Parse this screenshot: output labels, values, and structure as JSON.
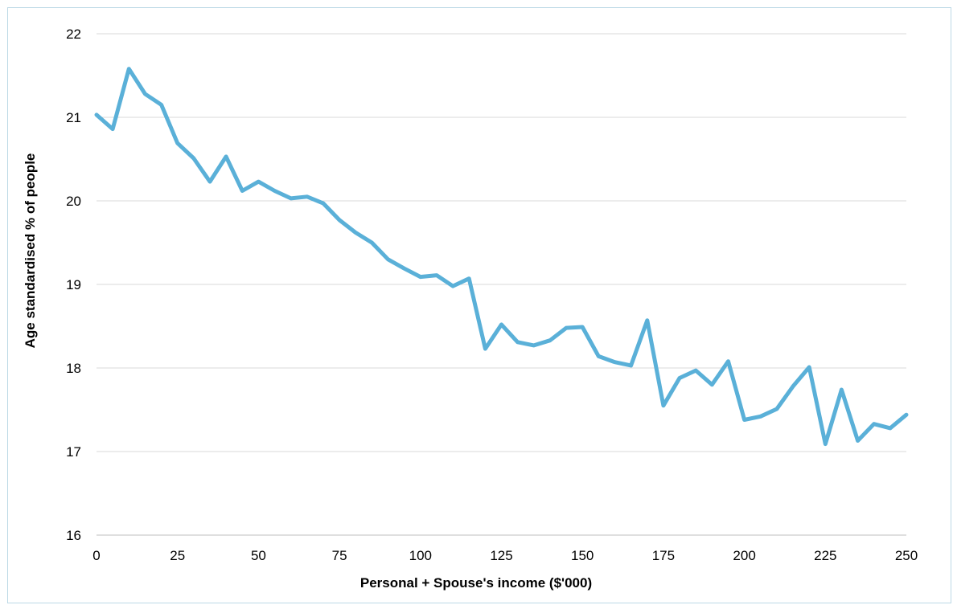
{
  "chart_data": {
    "type": "line",
    "title": "",
    "xlabel": "Personal + Spouse's income ($'000)",
    "ylabel": "Age standardised % of people",
    "xlim": [
      0,
      250
    ],
    "ylim": [
      16,
      22
    ],
    "x_ticks": [
      "0",
      "25",
      "50",
      "75",
      "100",
      "125",
      "150",
      "175",
      "200",
      "225",
      "250"
    ],
    "y_ticks": [
      "16",
      "17",
      "18",
      "19",
      "20",
      "21",
      "22"
    ],
    "grid": "horizontal",
    "line_color": "#5ab0d8",
    "series": [
      {
        "x": [
          0,
          5,
          10,
          15,
          20,
          25,
          30,
          35,
          40,
          45,
          50,
          55,
          60,
          65,
          70,
          75,
          80,
          85,
          90,
          95,
          100,
          105,
          110,
          115,
          120,
          125,
          130,
          135,
          140,
          145,
          150,
          155,
          160,
          165,
          170,
          175,
          180,
          185,
          190,
          195,
          200,
          205,
          210,
          215,
          220,
          225,
          230,
          235,
          240,
          245,
          250
        ],
        "values": [
          21.03,
          20.86,
          21.58,
          21.28,
          21.15,
          20.69,
          20.51,
          20.23,
          20.53,
          20.12,
          20.23,
          20.12,
          20.03,
          20.05,
          19.97,
          19.77,
          19.62,
          19.5,
          19.3,
          19.19,
          19.09,
          19.11,
          18.98,
          19.07,
          18.23,
          18.52,
          18.31,
          18.27,
          18.33,
          18.48,
          18.49,
          18.14,
          18.07,
          18.03,
          18.57,
          17.55,
          17.88,
          17.97,
          17.8,
          18.08,
          17.38,
          17.42,
          17.51,
          17.78,
          18.01,
          17.09,
          17.74,
          17.13,
          17.33,
          17.28,
          17.44
        ]
      }
    ]
  }
}
